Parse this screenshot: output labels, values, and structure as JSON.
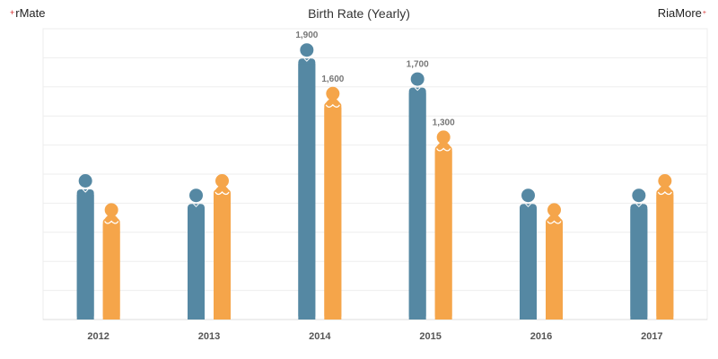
{
  "header": {
    "brand_left": "rMate",
    "brand_right": "RiaMore",
    "title": "Birth Rate (Yearly)",
    "plus_icon": "+"
  },
  "chart_data": {
    "type": "bar",
    "title": "Birth Rate (Yearly)",
    "xlabel": "",
    "ylabel": "",
    "categories": [
      "2012",
      "2013",
      "2014",
      "2015",
      "2016",
      "2017"
    ],
    "series": [
      {
        "values": [
          1000,
          900,
          1900,
          1700,
          900,
          900
        ],
        "labels": [
          "",
          "",
          "1,900",
          "1,700",
          "",
          ""
        ],
        "color": "#5588a3",
        "icon": "male-figure-icon"
      },
      {
        "values": [
          800,
          1000,
          1600,
          1300,
          800,
          1000
        ],
        "labels": [
          "",
          "",
          "1,600",
          "1,300",
          "",
          ""
        ],
        "color": "#f5a54a",
        "icon": "female-figure-icon"
      }
    ],
    "ylim": [
      0,
      2000
    ],
    "grid": true,
    "legend": "none"
  }
}
